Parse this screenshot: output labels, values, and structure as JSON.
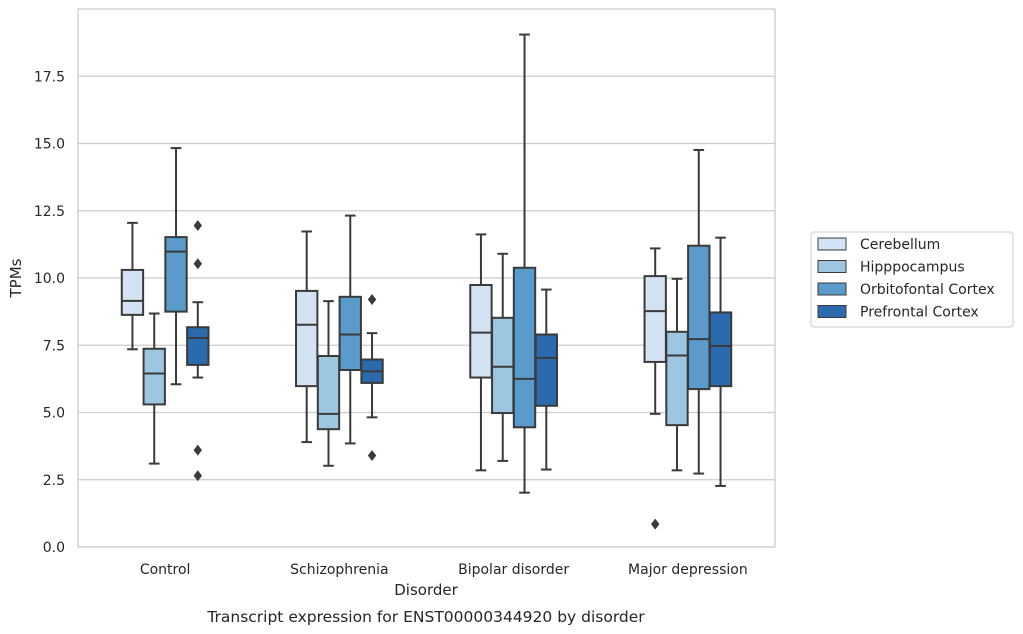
{
  "chart_data": {
    "type": "box",
    "title": "",
    "caption": "Transcript expression for ENST00000344920 by disorder",
    "xlabel": "Disorder",
    "ylabel": "TPMs",
    "ylim": [
      0,
      20.0
    ],
    "yticks": [
      "0.0",
      "2.5",
      "5.0",
      "7.5",
      "10.0",
      "12.5",
      "15.0",
      "17.5"
    ],
    "grid": "horizontal",
    "legend_position": "right",
    "categories": [
      "Control",
      "Schizophrenia",
      "Bipolar disorder",
      "Major depression"
    ],
    "series": [
      {
        "name": "Cerebellum",
        "color": "#d4e3f3",
        "boxes": [
          {
            "whisker_low": 7.35,
            "q1": 8.63,
            "median": 9.15,
            "q3": 10.3,
            "whisker_high": 12.05,
            "outliers": []
          },
          {
            "whisker_low": 3.9,
            "q1": 5.98,
            "median": 8.26,
            "q3": 9.52,
            "whisker_high": 11.73,
            "outliers": []
          },
          {
            "whisker_low": 2.85,
            "q1": 6.3,
            "median": 7.97,
            "q3": 9.74,
            "whisker_high": 11.62,
            "outliers": []
          },
          {
            "whisker_low": 4.95,
            "q1": 6.88,
            "median": 8.77,
            "q3": 10.07,
            "whisker_high": 11.1,
            "outliers": [
              0.85
            ]
          }
        ]
      },
      {
        "name": "Hipppocampus",
        "color": "#9dc7e0",
        "boxes": [
          {
            "whisker_low": 3.1,
            "q1": 5.3,
            "median": 6.45,
            "q3": 7.37,
            "whisker_high": 8.68,
            "outliers": []
          },
          {
            "whisker_low": 3.02,
            "q1": 4.38,
            "median": 4.95,
            "q3": 7.1,
            "whisker_high": 9.14,
            "outliers": []
          },
          {
            "whisker_low": 3.2,
            "q1": 4.98,
            "median": 6.7,
            "q3": 8.52,
            "whisker_high": 10.9,
            "outliers": []
          },
          {
            "whisker_low": 2.85,
            "q1": 4.53,
            "median": 7.12,
            "q3": 8.0,
            "whisker_high": 9.97,
            "outliers": []
          }
        ]
      },
      {
        "name": "Orbitofontal Cortex",
        "color": "#5a9bcb",
        "boxes": [
          {
            "whisker_low": 6.05,
            "q1": 8.75,
            "median": 10.98,
            "q3": 11.52,
            "whisker_high": 14.83,
            "outliers": []
          },
          {
            "whisker_low": 3.85,
            "q1": 6.58,
            "median": 7.9,
            "q3": 9.3,
            "whisker_high": 12.32,
            "outliers": []
          },
          {
            "whisker_low": 2.02,
            "q1": 4.45,
            "median": 6.25,
            "q3": 10.38,
            "whisker_high": 19.05,
            "outliers": []
          },
          {
            "whisker_low": 2.73,
            "q1": 5.87,
            "median": 7.73,
            "q3": 11.2,
            "whisker_high": 14.76,
            "outliers": []
          }
        ]
      },
      {
        "name": "Prefrontal Cortex",
        "color": "#2a6aad",
        "boxes": [
          {
            "whisker_low": 6.3,
            "q1": 6.77,
            "median": 7.77,
            "q3": 8.17,
            "whisker_high": 9.1,
            "outliers": [
              11.95,
              10.53,
              3.6,
              2.65
            ]
          },
          {
            "whisker_low": 4.82,
            "q1": 6.1,
            "median": 6.53,
            "q3": 6.97,
            "whisker_high": 7.95,
            "outliers": [
              9.2,
              3.4
            ]
          },
          {
            "whisker_low": 2.88,
            "q1": 5.25,
            "median": 7.03,
            "q3": 7.9,
            "whisker_high": 9.57,
            "outliers": []
          },
          {
            "whisker_low": 2.27,
            "q1": 5.98,
            "median": 7.47,
            "q3": 8.72,
            "whisker_high": 11.5,
            "outliers": []
          }
        ]
      }
    ]
  }
}
